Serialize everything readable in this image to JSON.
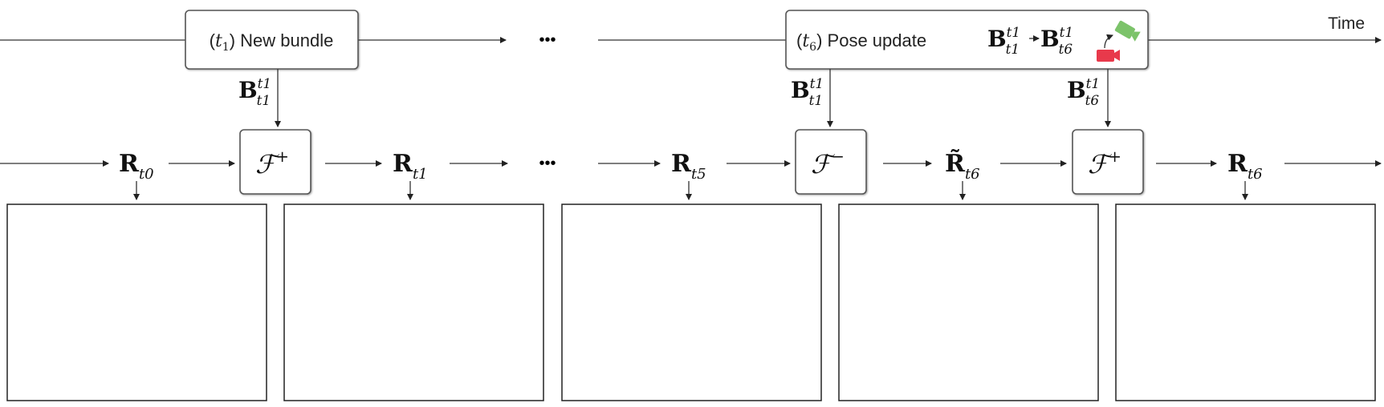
{
  "timeline": {
    "axis_label": "Time",
    "ellipsis": "•••",
    "event1": {
      "time_var": "t",
      "time_sub": "1",
      "text": "New bundle"
    },
    "event2": {
      "time_var": "t",
      "time_sub": "6",
      "text": "Pose update",
      "from": {
        "base": "B",
        "sup": "t1",
        "sub": "t1"
      },
      "to": {
        "base": "B",
        "sup": "t1",
        "sub": "t6"
      },
      "camera_icon_colors": {
        "before": "#e8394b",
        "after": "#7cc36a"
      }
    }
  },
  "edges": [
    {
      "base": "B",
      "sup": "t1",
      "sub": "t1"
    },
    {
      "base": "B",
      "sup": "t1",
      "sub": "t1"
    },
    {
      "base": "B",
      "sup": "t1",
      "sub": "t6"
    }
  ],
  "pipeline": {
    "ellipsis": "•••",
    "nodes": [
      {
        "kind": "state",
        "base": "R",
        "sub": "t0"
      },
      {
        "kind": "op",
        "base": "ℱ",
        "sup": "+"
      },
      {
        "kind": "state",
        "base": "R",
        "sub": "t1"
      },
      {
        "kind": "state",
        "base": "R",
        "sub": "t5"
      },
      {
        "kind": "op",
        "base": "ℱ",
        "sup": "−"
      },
      {
        "kind": "state",
        "base": "R̃",
        "sub": "t6"
      },
      {
        "kind": "op",
        "base": "ℱ",
        "sup": "+"
      },
      {
        "kind": "state",
        "base": "R",
        "sub": "t6"
      }
    ]
  },
  "colors": {
    "floor": "#86d6e2",
    "wall_purple": "#8a3fe6",
    "wall_magenta": "#c04fd8",
    "wall_orange": "#f2846a",
    "wall_green": "#2e8a6a"
  }
}
